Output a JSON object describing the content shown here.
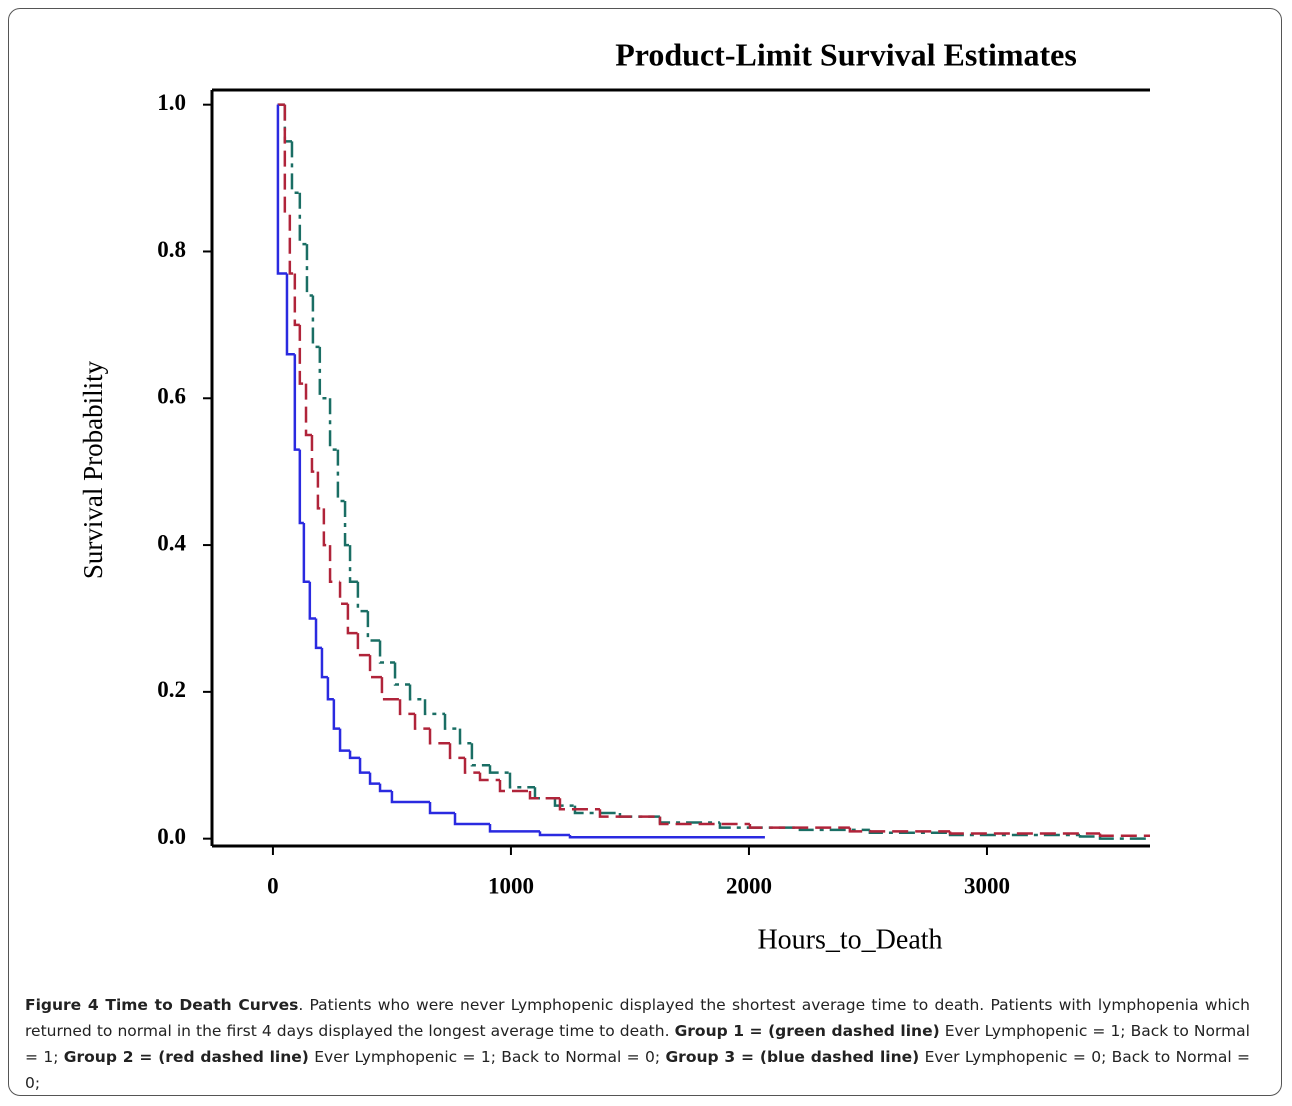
{
  "chart_data": {
    "type": "step",
    "title": "Product-Limit Survival Estimates",
    "ylabel": "Survival Probability",
    "xlabel": "Hours_to_Death",
    "xlim": [
      -256,
      3685
    ],
    "ylim": [
      -0.01,
      1.02
    ],
    "xticks": [
      0,
      1000,
      2000,
      3000
    ],
    "yticks": [
      {
        "value": 0,
        "label": "0.0"
      },
      0.2,
      0.4,
      0.6,
      0.8,
      {
        "value": 1,
        "label": "1.0"
      }
    ],
    "series": [
      {
        "color": "#1a6e64",
        "line_style": "dashdot",
        "x": [
          20,
          50,
          80,
          113,
          143,
          168,
          197,
          240,
          273,
          303,
          324,
          357,
          399,
          450,
          513,
          576,
          639,
          723,
          786,
          836,
          912,
          996,
          1101,
          1185,
          1269,
          1458,
          1626,
          1878,
          2214,
          2508,
          2845,
          3391,
          3475,
          3685
        ],
        "values": [
          1.0,
          0.95,
          0.88,
          0.81,
          0.74,
          0.67,
          0.6,
          0.53,
          0.46,
          0.4,
          0.35,
          0.31,
          0.27,
          0.24,
          0.21,
          0.19,
          0.17,
          0.15,
          0.13,
          0.1,
          0.09,
          0.07,
          0.055,
          0.045,
          0.035,
          0.03,
          0.022,
          0.015,
          0.012,
          0.008,
          0.005,
          0.003,
          0.0,
          0.0
        ]
      },
      {
        "color": "#b0243a",
        "line_style": "dashed",
        "x": [
          20,
          50,
          71,
          92,
          113,
          139,
          164,
          189,
          214,
          240,
          282,
          315,
          357,
          408,
          458,
          534,
          597,
          660,
          744,
          807,
          870,
          954,
          1080,
          1206,
          1374,
          1626,
          2004,
          2424,
          2845,
          3475,
          3685
        ],
        "values": [
          1.0,
          0.85,
          0.77,
          0.7,
          0.62,
          0.55,
          0.5,
          0.45,
          0.4,
          0.35,
          0.32,
          0.28,
          0.25,
          0.22,
          0.19,
          0.17,
          0.15,
          0.13,
          0.11,
          0.09,
          0.08,
          0.065,
          0.055,
          0.04,
          0.03,
          0.02,
          0.015,
          0.01,
          0.007,
          0.004,
          0.004
        ]
      },
      {
        "color": "#2a2ae0",
        "line_style": "solid",
        "x": [
          20,
          21,
          59,
          92,
          113,
          130,
          155,
          181,
          206,
          231,
          256,
          282,
          324,
          366,
          408,
          450,
          500,
          660,
          765,
          912,
          1122,
          1248,
          2067
        ],
        "values": [
          1.0,
          0.77,
          0.66,
          0.53,
          0.43,
          0.35,
          0.3,
          0.26,
          0.22,
          0.19,
          0.15,
          0.12,
          0.11,
          0.09,
          0.075,
          0.065,
          0.05,
          0.035,
          0.02,
          0.01,
          0.005,
          0.002,
          0.002
        ]
      }
    ]
  },
  "caption": [
    {
      "text": "Figure 4 Time to Death Curves",
      "bold": true
    },
    {
      "text": ". Patients who were never Lymphopenic displayed the shortest average time to death. Patients with lymphopenia which returned to normal in the first 4 days displayed the longest average time to death. ",
      "bold": false
    },
    {
      "text": "Group 1 = (green dashed line)",
      "bold": true
    },
    {
      "text": " Ever Lymphopenic = 1; Back to Normal = 1; ",
      "bold": false
    },
    {
      "text": "Group 2 = (red dashed line)",
      "bold": true
    },
    {
      "text": " Ever Lymphopenic = 1; Back to Normal = 0; ",
      "bold": false
    },
    {
      "text": "Group 3 = (blue dashed line)",
      "bold": true
    },
    {
      "text": " Ever Lymphopenic = 0; Back to Normal = 0;",
      "bold": false
    }
  ]
}
